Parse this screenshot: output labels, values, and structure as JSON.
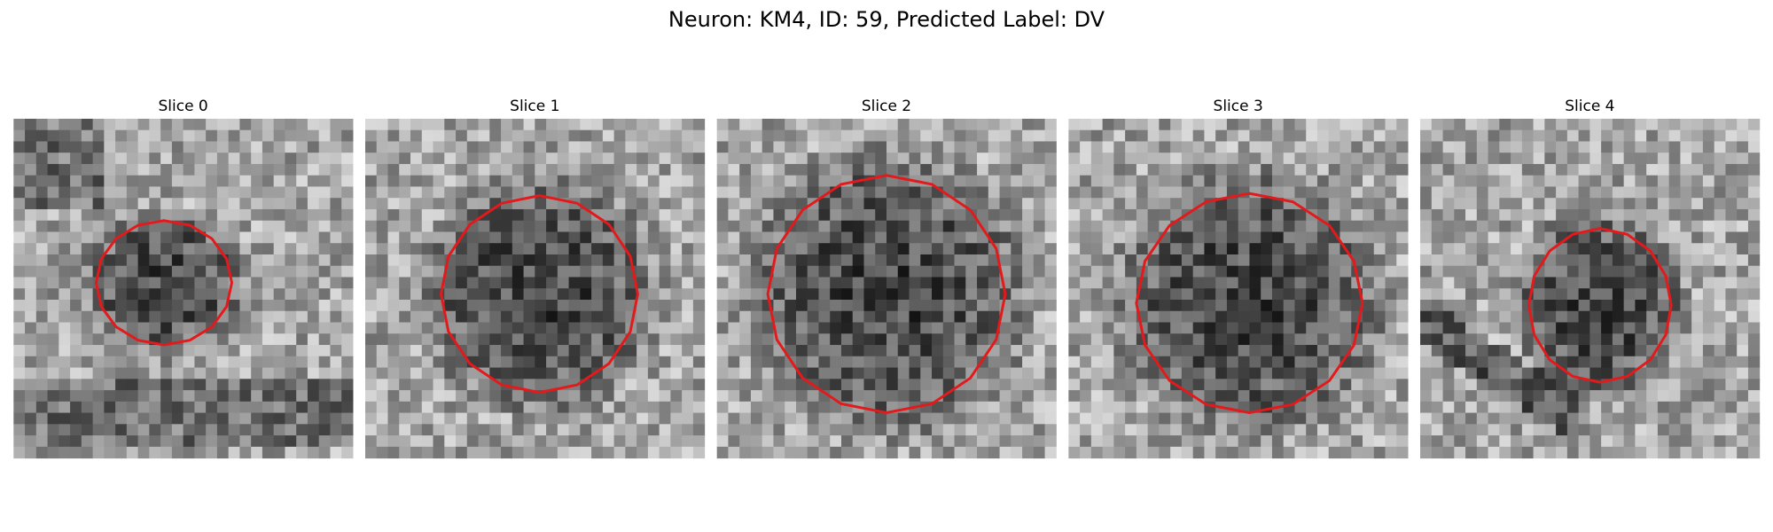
{
  "title": "Neuron: KM4, ID: 59, Predicted Label: DV",
  "panels": [
    {
      "title": "Slice 0"
    },
    {
      "title": "Slice 1"
    },
    {
      "title": "Slice 2"
    },
    {
      "title": "Slice 3"
    },
    {
      "title": "Slice 4"
    }
  ]
}
